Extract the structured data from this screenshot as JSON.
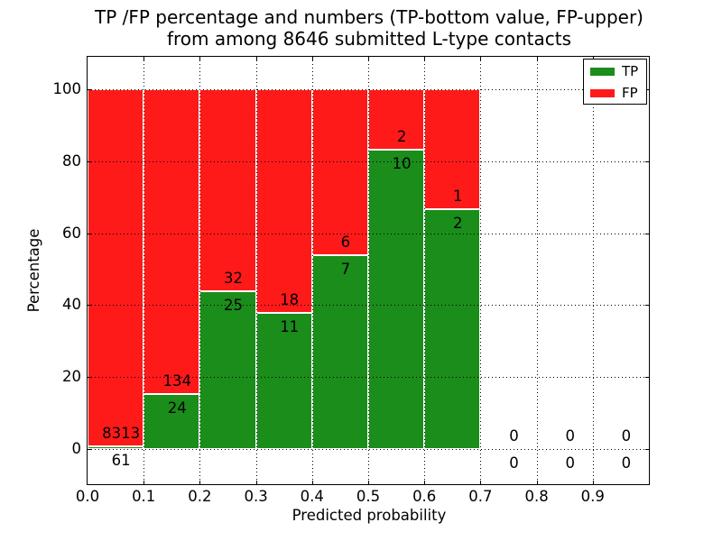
{
  "title": {
    "line1": "TP /FP percentage and numbers (TP-bottom value, FP-upper)",
    "line2": "from among 8646 submitted L-type contacts"
  },
  "axes": {
    "xlabel": "Predicted probability",
    "ylabel": "Percentage",
    "x_ticks": [
      "0.0",
      "0.1",
      "0.2",
      "0.3",
      "0.4",
      "0.5",
      "0.6",
      "0.7",
      "0.8",
      "0.9"
    ],
    "y_ticks": [
      "0",
      "20",
      "40",
      "60",
      "80",
      "100"
    ],
    "xlim": [
      0.0,
      1.0
    ],
    "ylim": [
      -10,
      109.5
    ]
  },
  "legend": {
    "position": "upper right",
    "entries": [
      {
        "label": "TP",
        "color": "#1a8d1a"
      },
      {
        "label": "FP",
        "color": "#ff1a1a"
      }
    ]
  },
  "chart_data": {
    "type": "bar",
    "mode": "stacked-to-100-percent",
    "title": "TP /FP percentage and numbers (TP-bottom value, FP-upper) from among 8646 submitted L-type contacts",
    "xlabel": "Predicted probability",
    "ylabel": "Percentage",
    "total_submitted": 8646,
    "bin_width": 0.1,
    "categories": [
      "0.0-0.1",
      "0.1-0.2",
      "0.2-0.3",
      "0.3-0.4",
      "0.4-0.5",
      "0.5-0.6",
      "0.6-0.7",
      "0.7-0.8",
      "0.8-0.9",
      "0.9-1.0"
    ],
    "series": [
      {
        "name": "TP",
        "color": "#1a8d1a",
        "counts": [
          61,
          24,
          25,
          11,
          7,
          10,
          2,
          0,
          0,
          0
        ]
      },
      {
        "name": "FP",
        "color": "#ff1a1a",
        "counts": [
          8313,
          134,
          32,
          18,
          6,
          2,
          1,
          0,
          0,
          0
        ]
      }
    ],
    "tp_percent_of_bin": [
      0.73,
      15.19,
      43.86,
      37.93,
      53.85,
      83.33,
      66.67,
      null,
      null,
      null
    ],
    "bar_edge_color": "#ffffff",
    "grid": {
      "style": "dotted",
      "color": "#000000",
      "y_lines": [
        0,
        20,
        40,
        60,
        80,
        100
      ],
      "x_lines": [
        0.1,
        0.2,
        0.3,
        0.4,
        0.5,
        0.6,
        0.7,
        0.8,
        0.9
      ]
    },
    "legend_position": "upper right"
  }
}
